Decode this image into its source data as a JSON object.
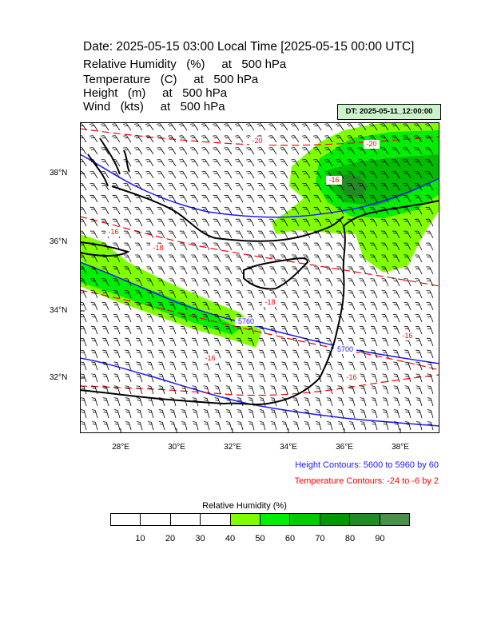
{
  "header": {
    "title": "Date: 2025-05-15  03:00 Local Time [2025-05-15  00:00 UTC]",
    "fields": [
      "Relative Humidity   (%)     at   500 hPa",
      "Temperature   (C)     at   500 hPa",
      "Height   (m)     at   500 hPa",
      "Wind   (kts)     at   500 hPa"
    ],
    "dt_label": "DT: 2025-05-11_12:00:00"
  },
  "map": {
    "lat_labels": [
      "38°N",
      "36°N",
      "34°N",
      "32°N"
    ],
    "lon_labels": [
      "28°E",
      "30°E",
      "32°E",
      "34°E",
      "36°E",
      "38°E"
    ],
    "height_contour_labels": [
      "5760",
      "5700"
    ],
    "temperature_contour_labels": [
      "-20",
      "-20",
      "-18",
      "-18",
      "-16",
      "-16",
      "-16",
      "-16",
      "-16"
    ],
    "colors": {
      "height_contour": "#1a1aff",
      "temperature_contour": "#ff0000",
      "coastline": "#000000",
      "wind_barb": "#000000"
    }
  },
  "legend": {
    "height": "Height Contours: 5600 to 5960 by 60",
    "temperature": "Temperature Contours: -24 to -6 by 2"
  },
  "colorbar": {
    "title": "Relative Humidity  (%)",
    "labels": [
      "10",
      "20",
      "30",
      "40",
      "50",
      "60",
      "70",
      "80",
      "90"
    ],
    "colors": [
      "#ffffff",
      "#ffffff",
      "#ffffff",
      "#ffffff",
      "#80ff00",
      "#00ee00",
      "#00cc00",
      "#009900",
      "#228b22",
      "#4a8f4a"
    ]
  }
}
